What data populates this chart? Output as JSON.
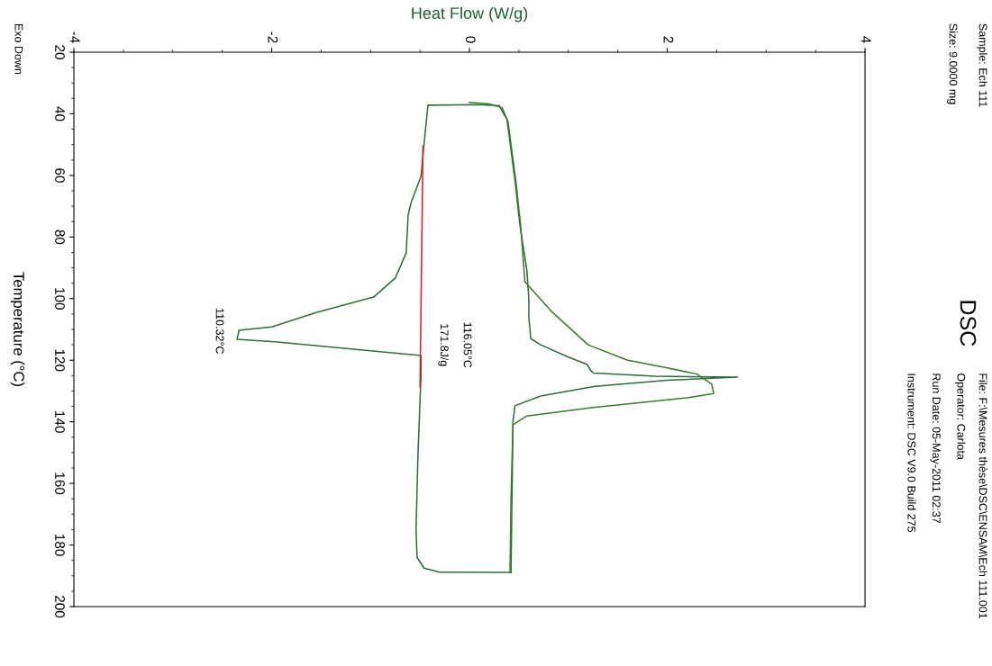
{
  "chart_data": {
    "type": "line",
    "title": "DSC",
    "xlabel": "Heat Flow (W/g)",
    "ylabel": "Temperature (°C)",
    "xlim": [
      -4,
      4
    ],
    "xticks": [
      -4,
      -2,
      0,
      2,
      4
    ],
    "ylim": [
      200,
      20
    ],
    "yticks": [
      20,
      40,
      60,
      80,
      100,
      120,
      140,
      160,
      180,
      200
    ],
    "grid": false,
    "line_style": "solid",
    "series": [
      {
        "color": "#2f6b3b",
        "x": [
          0.42,
          -0.3,
          -0.46,
          -0.53,
          -0.54,
          -0.52,
          -0.49,
          -0.49,
          -1.97,
          -2.35,
          -2.33,
          -2.0,
          -1.55,
          -0.97,
          -0.75,
          -0.64,
          -0.62,
          -0.59,
          -0.49,
          -0.46,
          -0.42,
          0.1,
          0.3
        ],
        "values": [
          188.9,
          188.8,
          187.5,
          184,
          175,
          150,
          125,
          118.5,
          114,
          113.2,
          110.3,
          109.2,
          104.5,
          99.5,
          93.3,
          85.2,
          72.9,
          68.8,
          60.3,
          50.1,
          37.2,
          37.0,
          37.4
        ]
      },
      {
        "color": "#2f6b3b",
        "x": [
          0.3,
          0.38,
          0.4,
          0.46,
          0.51,
          0.58,
          0.6,
          0.6,
          0.62,
          0.72,
          1.0,
          1.19,
          1.22,
          1.25,
          1.88,
          2.71,
          2.0,
          1.27,
          0.72,
          0.46,
          0.44,
          0.43,
          0.42
        ],
        "values": [
          37.4,
          41.9,
          46.9,
          61.5,
          76.1,
          90.7,
          100,
          106,
          113,
          115,
          119,
          121.4,
          123,
          124.2,
          125.2,
          125.5,
          126.5,
          128.5,
          131.6,
          134.8,
          140,
          165,
          188.9
        ]
      },
      {
        "color": "#3a7a2a",
        "x": [
          0.0,
          0.2,
          0.33,
          0.39,
          0.41,
          0.47,
          0.52,
          0.56,
          0.84,
          1.2,
          1.6,
          2.0,
          2.3,
          2.45,
          2.47,
          2.2,
          1.23,
          0.58,
          0.44,
          0.42,
          0.41
        ],
        "values": [
          36.3,
          36.8,
          38.0,
          42.5,
          47.5,
          62,
          77,
          94.5,
          104.5,
          115,
          120,
          122.5,
          124.5,
          127.8,
          130.8,
          132.2,
          135.4,
          138.1,
          141,
          165,
          188.9
        ]
      },
      {
        "color": "#e02020",
        "x": [
          -0.47,
          -0.5
        ],
        "values": [
          50.4,
          128.7
        ]
      }
    ],
    "annotations": [
      "Exo Down",
      "Sample: Ech 111",
      "Size: 9.0000 mg",
      "File: F:\\Mesures thèse\\DSC\\ENSAM\\Ech 111.001",
      "Operator: Carlota",
      "Run Date: 05-May-2011 02:37",
      "Instrument: DSC V9.0 Build 275",
      "110.32°C",
      "116.05°C",
      "171.8J/g"
    ]
  }
}
